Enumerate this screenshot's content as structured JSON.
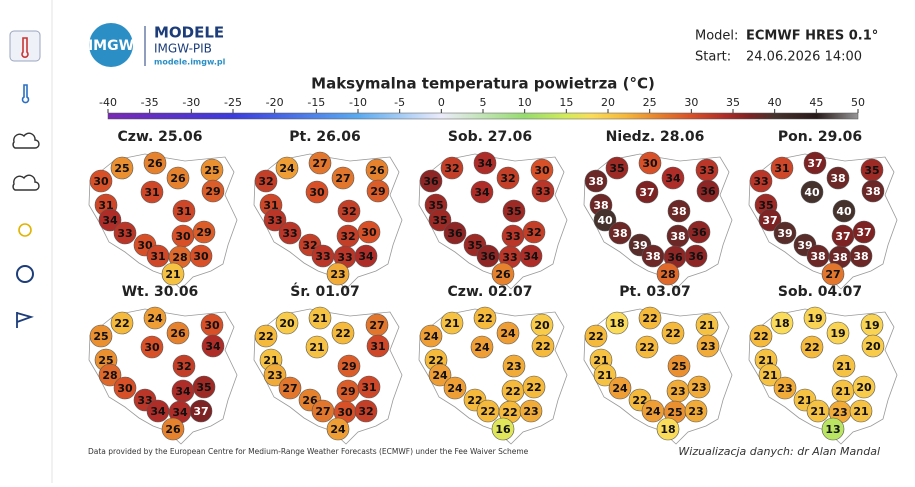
{
  "header": {
    "logo_mark": "IMGW",
    "logo_title": "MODELE",
    "logo_subtitle": "IMGW-PIB",
    "logo_url": "modele.imgw.pl",
    "model_label": "Model:",
    "model_value": "ECMWF HRES 0.1°",
    "start_label": "Start:",
    "start_value": "24.06.2026 14:00"
  },
  "chart_data": {
    "type": "map",
    "title": "Maksymalna temperatura powietrza (°C)",
    "xlim": [
      -40,
      50
    ],
    "xticks": [
      -40,
      -35,
      -30,
      -25,
      -20,
      -15,
      -10,
      -5,
      0,
      5,
      10,
      15,
      20,
      25,
      30,
      35,
      40,
      45,
      50
    ],
    "maps": [
      {
        "title": "Czw. 25.06",
        "values": [
          25,
          26,
          25,
          30,
          26,
          29,
          31,
          31,
          34,
          31,
          33,
          30,
          29,
          30,
          31,
          28,
          30,
          21
        ]
      },
      {
        "title": "Pt. 26.06",
        "values": [
          24,
          27,
          26,
          32,
          27,
          29,
          30,
          31,
          33,
          32,
          33,
          32,
          30,
          32,
          33,
          33,
          34,
          23
        ]
      },
      {
        "title": "Sob. 27.06",
        "values": [
          32,
          34,
          30,
          36,
          32,
          33,
          34,
          35,
          35,
          35,
          36,
          33,
          32,
          35,
          36,
          33,
          34,
          26
        ]
      },
      {
        "title": "Niedz. 28.06",
        "values": [
          35,
          30,
          33,
          38,
          34,
          36,
          37,
          38,
          40,
          38,
          38,
          38,
          36,
          39,
          38,
          36,
          36,
          28
        ]
      },
      {
        "title": "Pon. 29.06",
        "values": [
          31,
          37,
          35,
          33,
          38,
          38,
          40,
          35,
          37,
          40,
          39,
          37,
          37,
          39,
          38,
          38,
          38,
          27
        ]
      },
      {
        "title": "Wt. 30.06",
        "values": [
          22,
          24,
          30,
          25,
          26,
          34,
          30,
          25,
          28,
          32,
          30,
          34,
          35,
          33,
          34,
          34,
          37,
          26
        ]
      },
      {
        "title": "Śr. 01.07",
        "values": [
          20,
          21,
          27,
          22,
          22,
          31,
          21,
          21,
          23,
          29,
          27,
          29,
          31,
          26,
          27,
          30,
          32,
          24
        ]
      },
      {
        "title": "Czw. 02.07",
        "values": [
          21,
          22,
          20,
          24,
          24,
          22,
          24,
          22,
          24,
          23,
          24,
          22,
          22,
          22,
          22,
          22,
          23,
          16
        ]
      },
      {
        "title": "Pt. 03.07",
        "values": [
          18,
          22,
          21,
          22,
          22,
          23,
          22,
          21,
          21,
          25,
          24,
          23,
          23,
          22,
          24,
          25,
          23,
          18
        ]
      },
      {
        "title": "Sob. 04.07",
        "values": [
          18,
          19,
          19,
          22,
          19,
          20,
          22,
          21,
          21,
          21,
          23,
          21,
          20,
          21,
          21,
          23,
          21,
          13
        ]
      }
    ]
  },
  "footer": {
    "source": "Data provided by the European Centre for Medium-Range Weather Forecasts (ECMWF) under the Fee Waiver Scheme",
    "credit": "Wizualizacja danych: dr Alan Mandal"
  }
}
